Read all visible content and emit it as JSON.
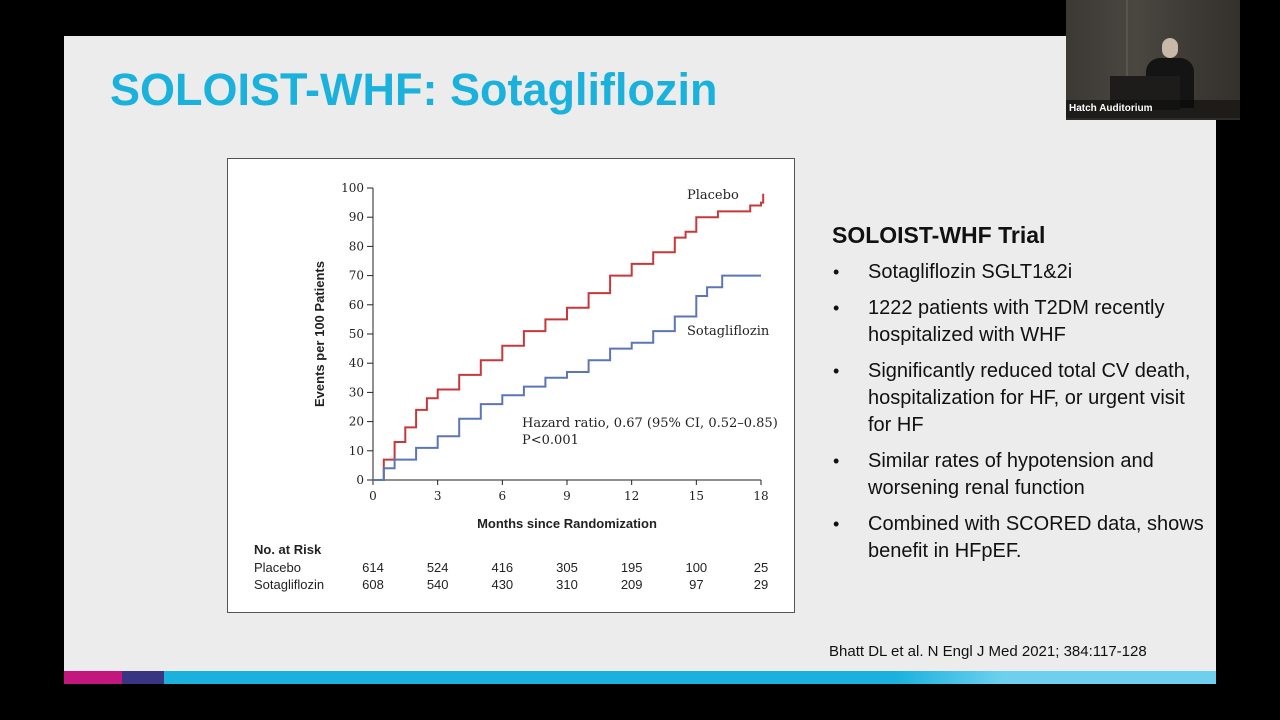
{
  "slide": {
    "title": "SOLOIST-WHF: Sotagliflozin",
    "right_heading": "SOLOIST-WHF Trial",
    "bullets": [
      "Sotagliflozin SGLT1&2i",
      "1222 patients with T2DM recently hospitalized with WHF",
      "Significantly reduced total CV death, hospitalization for HF, or urgent visit for HF",
      "Similar rates of hypotension and worsening renal function",
      "Combined with SCORED data, shows benefit in HFpEF."
    ],
    "citation": "Bhatt DL et al. N Engl J Med 2021; 384:117-128",
    "colors": {
      "title": "#1ab1dd",
      "placebo": "#c8383a",
      "sotagliflozin": "#5b76b8"
    }
  },
  "video": {
    "label": "Hatch Auditorium"
  },
  "chart_data": {
    "type": "line",
    "xlabel": "Months since Randomization",
    "ylabel": "Events per 100 Patients",
    "xlim": [
      0,
      18
    ],
    "ylim": [
      0,
      100
    ],
    "xticks": [
      0,
      3,
      6,
      9,
      12,
      15,
      18
    ],
    "yticks": [
      0,
      10,
      20,
      30,
      40,
      50,
      60,
      70,
      80,
      90,
      100
    ],
    "series": [
      {
        "name": "Placebo",
        "x": [
          0,
          0.5,
          1,
          1.5,
          2,
          2.5,
          3,
          4,
          5,
          6,
          7,
          8,
          9,
          10,
          11,
          12,
          13,
          14,
          14.5,
          15,
          16,
          17,
          17.5,
          18,
          18.1
        ],
        "y": [
          0,
          7,
          13,
          18,
          24,
          28,
          31,
          36,
          41,
          46,
          51,
          55,
          59,
          64,
          70,
          74,
          78,
          83,
          85,
          90,
          92,
          92,
          94,
          95,
          98
        ]
      },
      {
        "name": "Sotagliflozin",
        "x": [
          0,
          0.5,
          1,
          2,
          3,
          4,
          5,
          6,
          7,
          8,
          9,
          10,
          11,
          12,
          13,
          14,
          15,
          15.5,
          16,
          16.2,
          17,
          18
        ],
        "y": [
          0,
          4,
          7,
          11,
          15,
          21,
          26,
          29,
          32,
          35,
          37,
          41,
          45,
          47,
          51,
          56,
          63,
          66,
          66,
          70,
          70,
          70
        ]
      }
    ],
    "annotations": [
      "Hazard ratio, 0.67 (95% CI, 0.52–0.85)",
      "P<0.001"
    ],
    "risk_table": {
      "title": "No. at Risk",
      "rows": [
        {
          "label": "Placebo",
          "values": [
            "614",
            "524",
            "416",
            "305",
            "195",
            "100",
            "25"
          ]
        },
        {
          "label": "Sotagliflozin",
          "values": [
            "608",
            "540",
            "430",
            "310",
            "209",
            "97",
            "29"
          ]
        }
      ]
    }
  }
}
